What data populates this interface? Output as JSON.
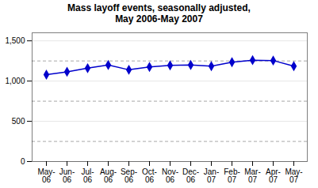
{
  "chart_data": {
    "type": "line",
    "title": "Mass layoff events, seasonally adjusted,\nMay 2006-May 2007",
    "categories": [
      "May-\n06",
      "Jun-\n06",
      "Jul-\n06",
      "Aug-\n06",
      "Sep-\n06",
      "Oct-\n06",
      "Nov-\n06",
      "Dec-\n06",
      "Jan-\n07",
      "Feb-\n07",
      "Mar-\n07",
      "Apr-\n07",
      "May-\n07"
    ],
    "values": [
      1080,
      1115,
      1160,
      1200,
      1140,
      1175,
      1195,
      1200,
      1185,
      1235,
      1260,
      1255,
      1185
    ],
    "color": "#0000cc",
    "marker": "diamond",
    "ylim": [
      0,
      1600
    ],
    "yticks": [
      0,
      500,
      {
        "value": 1000,
        "label": "1,000"
      },
      {
        "value": 1500,
        "label": "1,500"
      }
    ],
    "minor_yticks": [
      250,
      750,
      1250
    ],
    "grid": true
  }
}
